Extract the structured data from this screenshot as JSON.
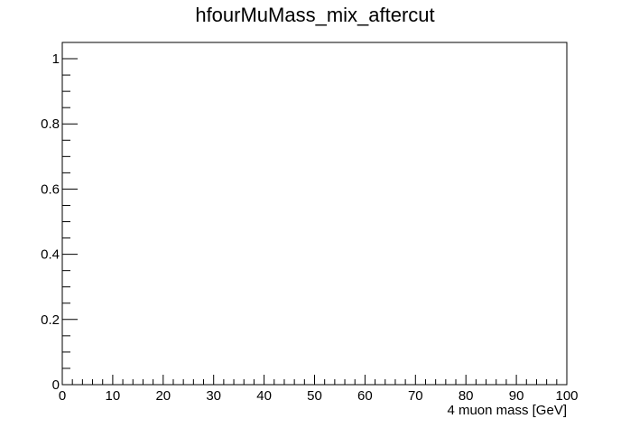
{
  "chart_data": {
    "type": "line",
    "title": "hfourMuMass_mix_aftercut",
    "xlabel": "4 muon mass [GeV]",
    "ylabel": "",
    "xlim": [
      0,
      100
    ],
    "ylim": [
      0,
      1.05
    ],
    "x_ticks": [
      "0",
      "10",
      "20",
      "30",
      "40",
      "50",
      "60",
      "70",
      "80",
      "90",
      "100"
    ],
    "y_ticks": [
      "0",
      "0.2",
      "0.4",
      "0.6",
      "0.8",
      "1"
    ],
    "grid": false,
    "series": []
  }
}
